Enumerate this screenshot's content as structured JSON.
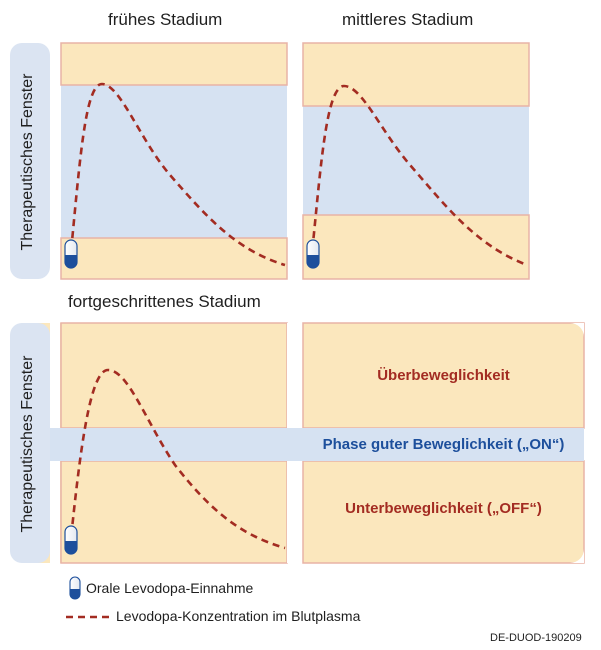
{
  "stages": {
    "early": "frühes Stadium",
    "middle": "mittleres Stadium",
    "advanced": "fortgeschrittenes Stadium"
  },
  "axis_label": "Therapeutisches Fenster",
  "zones": {
    "over": "Überbeweglichkeit",
    "on": "Phase guter Beweglichkeit („ON“)",
    "off": "Unterbeweglichkeit („OFF“)"
  },
  "legend": {
    "capsule": "Orale Levodopa-Einnahme",
    "curve": "Levodopa-Konzentration im Blutplasma"
  },
  "code": "DE-DUOD-190209",
  "colors": {
    "zone_outside": "#fbe7bd",
    "window": "#d6e2f2",
    "border": "#e8b3a6",
    "curve": "#a32c22",
    "capsule_blue": "#1d4f9c",
    "zone_text_red": "#a32c22",
    "zone_text_blue": "#1d4f9c",
    "side_bg": "#dbe4f2",
    "bottom_bg": "#fbe7bd"
  },
  "icons": {
    "capsule": "capsule-icon",
    "dashed_line": "dashed-line-icon"
  }
}
